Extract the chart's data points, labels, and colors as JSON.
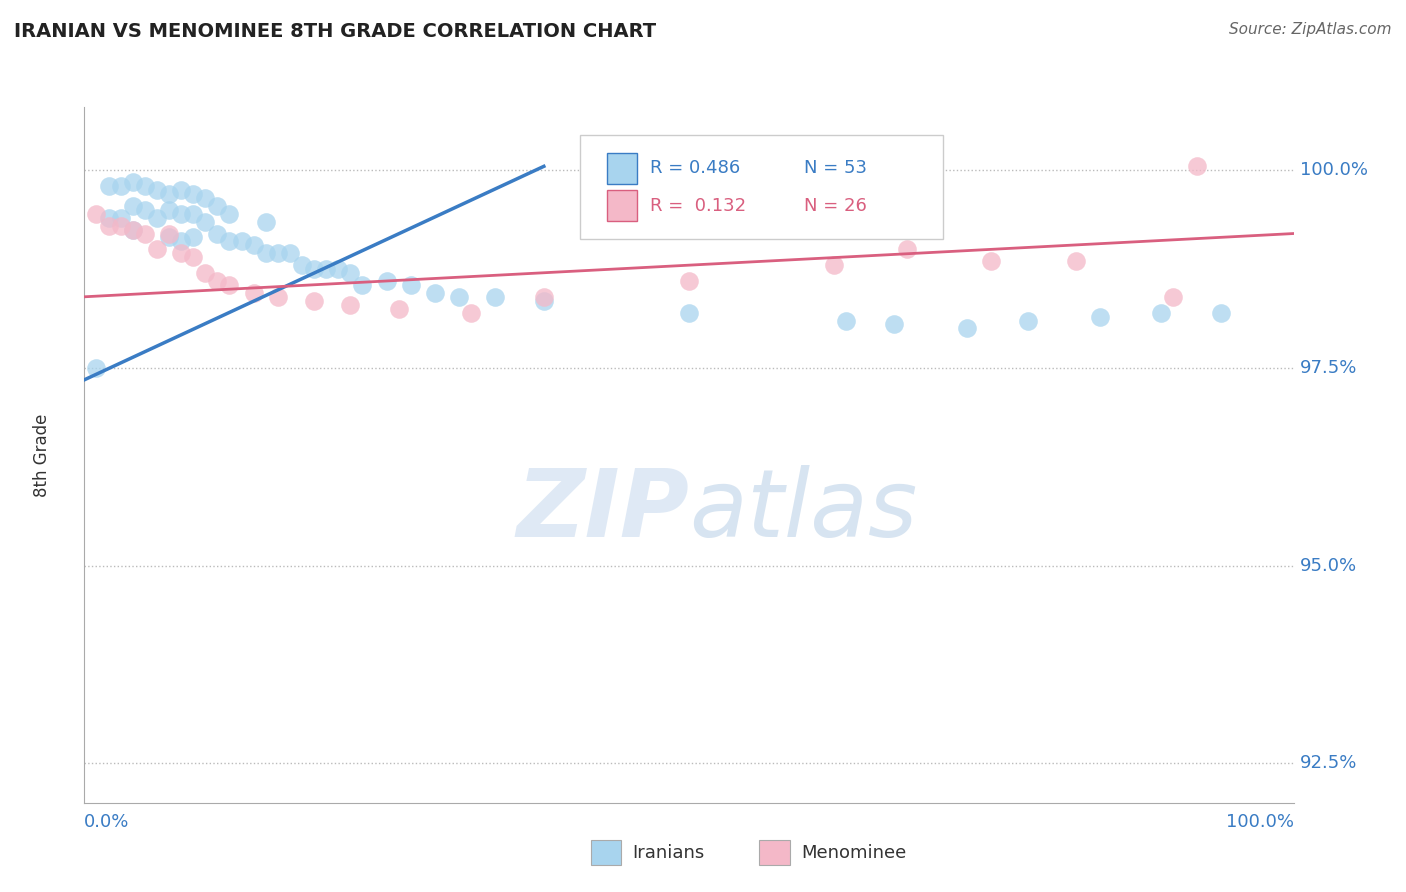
{
  "title": "IRANIAN VS MENOMINEE 8TH GRADE CORRELATION CHART",
  "source": "Source: ZipAtlas.com",
  "ylabel": "8th Grade",
  "legend_blue_r": "R = 0.486",
  "legend_blue_n": "N = 53",
  "legend_pink_r": "R =  0.132",
  "legend_pink_n": "N = 26",
  "blue_color": "#A8D4EE",
  "pink_color": "#F4B8C8",
  "line_blue_color": "#3A7CC4",
  "line_pink_color": "#D95F7F",
  "title_color": "#222222",
  "axis_label_color": "#3A7CC4",
  "grid_color": "#BBBBBB",
  "xmin": 0.0,
  "xmax": 1.0,
  "ymin": 0.92,
  "ymax": 1.008,
  "yticks": [
    1.0,
    0.975,
    0.95,
    0.925
  ],
  "ytick_labels": [
    "100.0%",
    "97.5%",
    "95.0%",
    "92.5%"
  ],
  "blue_line_x": [
    0.0,
    0.38
  ],
  "blue_line_y": [
    0.9735,
    1.0005
  ],
  "pink_line_x": [
    0.0,
    1.0
  ],
  "pink_line_y": [
    0.984,
    0.992
  ],
  "blue_points_x": [
    0.01,
    0.02,
    0.02,
    0.03,
    0.03,
    0.04,
    0.04,
    0.04,
    0.05,
    0.05,
    0.06,
    0.06,
    0.07,
    0.07,
    0.07,
    0.08,
    0.08,
    0.08,
    0.09,
    0.09,
    0.09,
    0.1,
    0.1,
    0.11,
    0.11,
    0.12,
    0.12,
    0.13,
    0.14,
    0.15,
    0.15,
    0.16,
    0.17,
    0.18,
    0.19,
    0.2,
    0.21,
    0.22,
    0.23,
    0.25,
    0.27,
    0.29,
    0.31,
    0.34,
    0.38,
    0.5,
    0.63,
    0.67,
    0.73,
    0.78,
    0.84,
    0.89,
    0.94
  ],
  "blue_points_y": [
    0.975,
    0.998,
    0.994,
    0.998,
    0.994,
    0.9985,
    0.9955,
    0.9925,
    0.998,
    0.995,
    0.9975,
    0.994,
    0.997,
    0.995,
    0.9915,
    0.9975,
    0.9945,
    0.991,
    0.997,
    0.9945,
    0.9915,
    0.9965,
    0.9935,
    0.9955,
    0.992,
    0.9945,
    0.991,
    0.991,
    0.9905,
    0.9935,
    0.9895,
    0.9895,
    0.9895,
    0.988,
    0.9875,
    0.9875,
    0.9875,
    0.987,
    0.9855,
    0.986,
    0.9855,
    0.9845,
    0.984,
    0.984,
    0.9835,
    0.982,
    0.981,
    0.9805,
    0.98,
    0.981,
    0.9815,
    0.982,
    0.982
  ],
  "pink_points_x": [
    0.01,
    0.02,
    0.03,
    0.04,
    0.05,
    0.06,
    0.07,
    0.08,
    0.09,
    0.1,
    0.11,
    0.12,
    0.14,
    0.16,
    0.19,
    0.22,
    0.26,
    0.32,
    0.38,
    0.5,
    0.62,
    0.68,
    0.75,
    0.82,
    0.9,
    0.92
  ],
  "pink_points_y": [
    0.9945,
    0.993,
    0.993,
    0.9925,
    0.992,
    0.99,
    0.992,
    0.9895,
    0.989,
    0.987,
    0.986,
    0.9855,
    0.9845,
    0.984,
    0.9835,
    0.983,
    0.9825,
    0.982,
    0.984,
    0.986,
    0.988,
    0.99,
    0.9885,
    0.9885,
    0.984,
    1.0005
  ]
}
